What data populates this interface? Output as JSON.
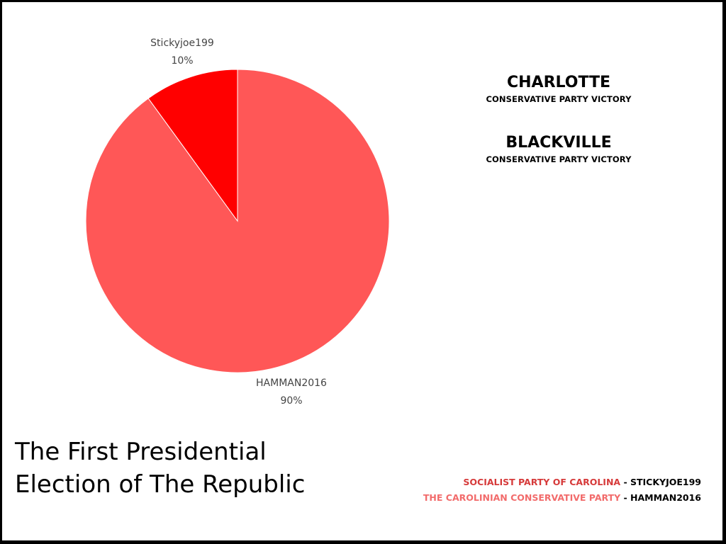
{
  "chart_data": {
    "type": "pie",
    "title": "The First Presidential Election of The Republic",
    "slices": [
      {
        "label": "HAMMAN2016",
        "value": 90,
        "value_label": "90%",
        "color": "#ff5757"
      },
      {
        "label": "Stickyjoe199",
        "value": 10,
        "value_label": "10%",
        "color": "#ff0000"
      }
    ]
  },
  "results": [
    {
      "city": "CHARLOTTE",
      "outcome": "CONSERVATIVE PARTY VICTORY"
    },
    {
      "city": "BLACKVILLE",
      "outcome": "CONSERVATIVE PARTY VICTORY"
    }
  ],
  "legend": [
    {
      "party": "SOCIALIST PARTY OF CAROLINA",
      "separator": " - ",
      "member": "STICKYJOE199",
      "color": "#d63a3a"
    },
    {
      "party": "THE CAROLINIAN CONSERVATIVE PARTY",
      "separator": " - ",
      "member": "HAMMAN2016",
      "color": "#f26b6b"
    }
  ]
}
